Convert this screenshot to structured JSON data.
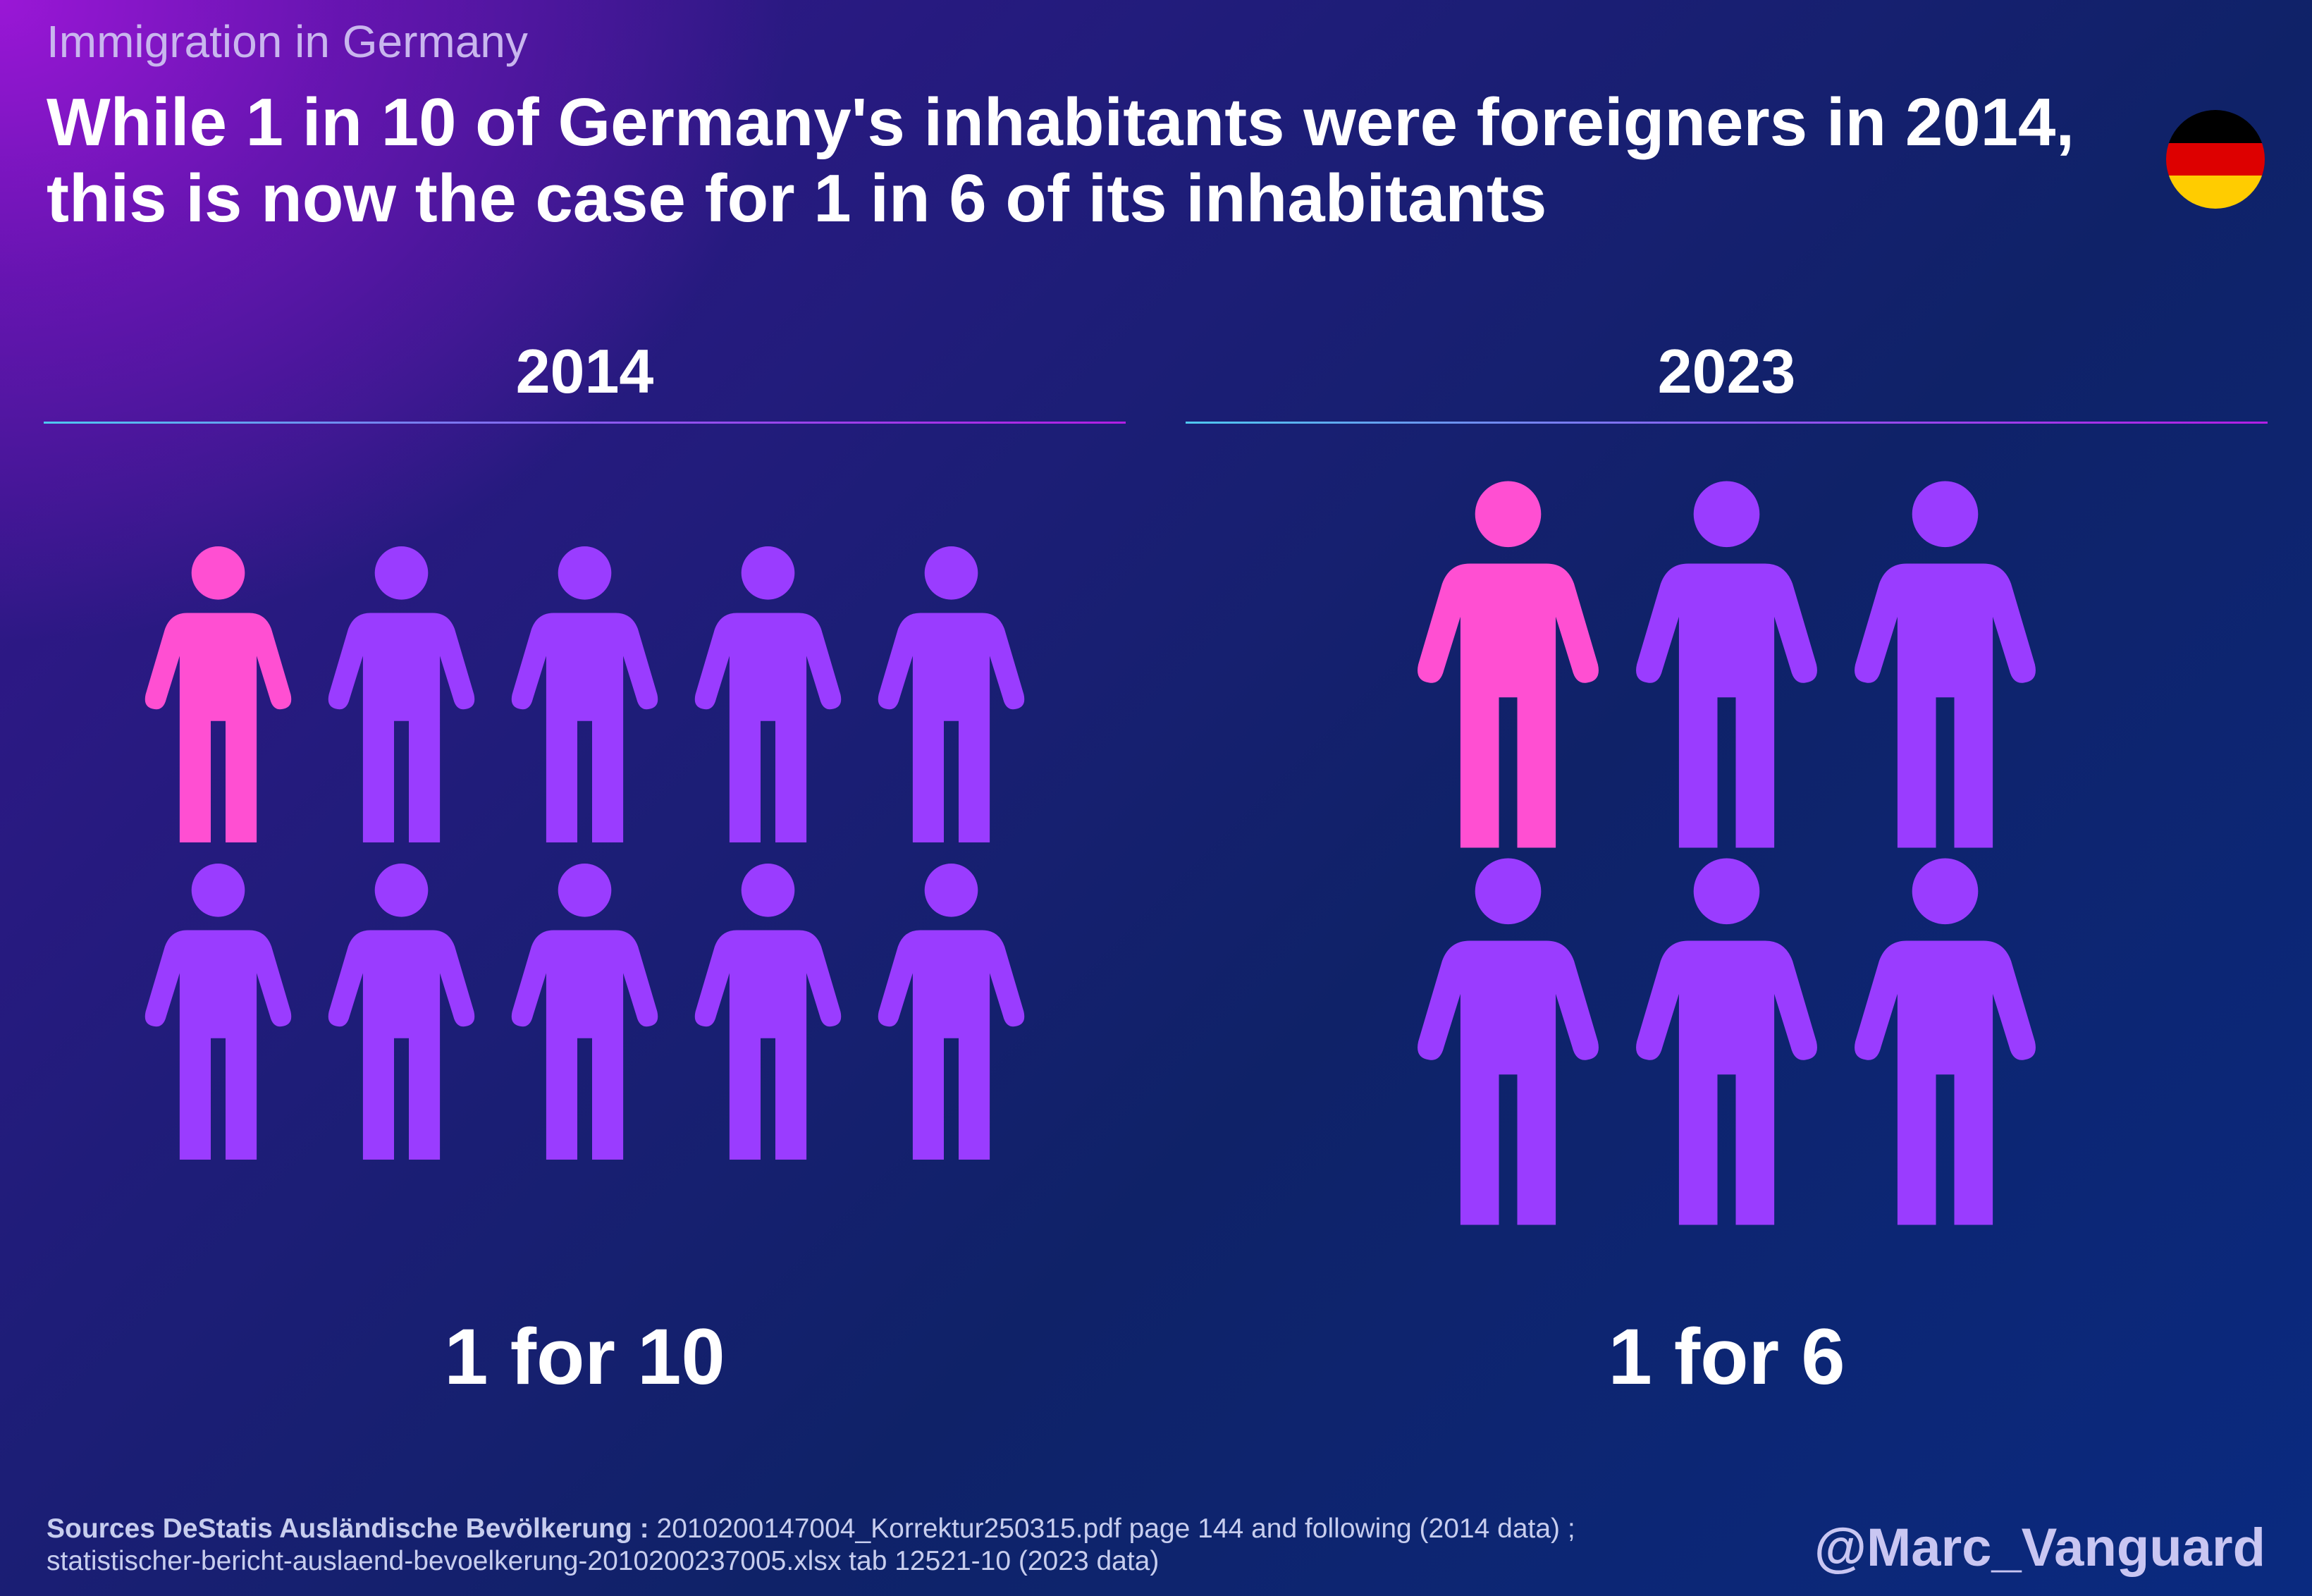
{
  "header": {
    "kicker": "Immigration in Germany",
    "title": "While 1 in 10 of Germany's inhabitants were foreigners in 2014, this is now the case for 1 in 6 of its inhabitants"
  },
  "flag": {
    "country": "Germany",
    "icon": "germany-flag-icon",
    "stripes": [
      "#000000",
      "#dd0000",
      "#ffcc00"
    ]
  },
  "colors": {
    "foreigner": "#ff4fd2",
    "inhabitant": "#9a3cff"
  },
  "panels": [
    {
      "year": "2014",
      "total": 10,
      "foreigners": 1,
      "caption": "1 for 10"
    },
    {
      "year": "2023",
      "total": 6,
      "foreigners": 1,
      "caption": "1 for 6"
    }
  ],
  "footer": {
    "sources_label": "Sources DeStatis Ausländische Bevölkerung :",
    "sources_line1": "2010200147004_Korrektur250315.pdf page 144 and following (2014 data) ;",
    "sources_line2": "statistischer-bericht-auslaend-bevoelkerung-2010200237005.xlsx tab 12521-10 (2023 data)",
    "handle": "@Marc_Vanguard"
  }
}
